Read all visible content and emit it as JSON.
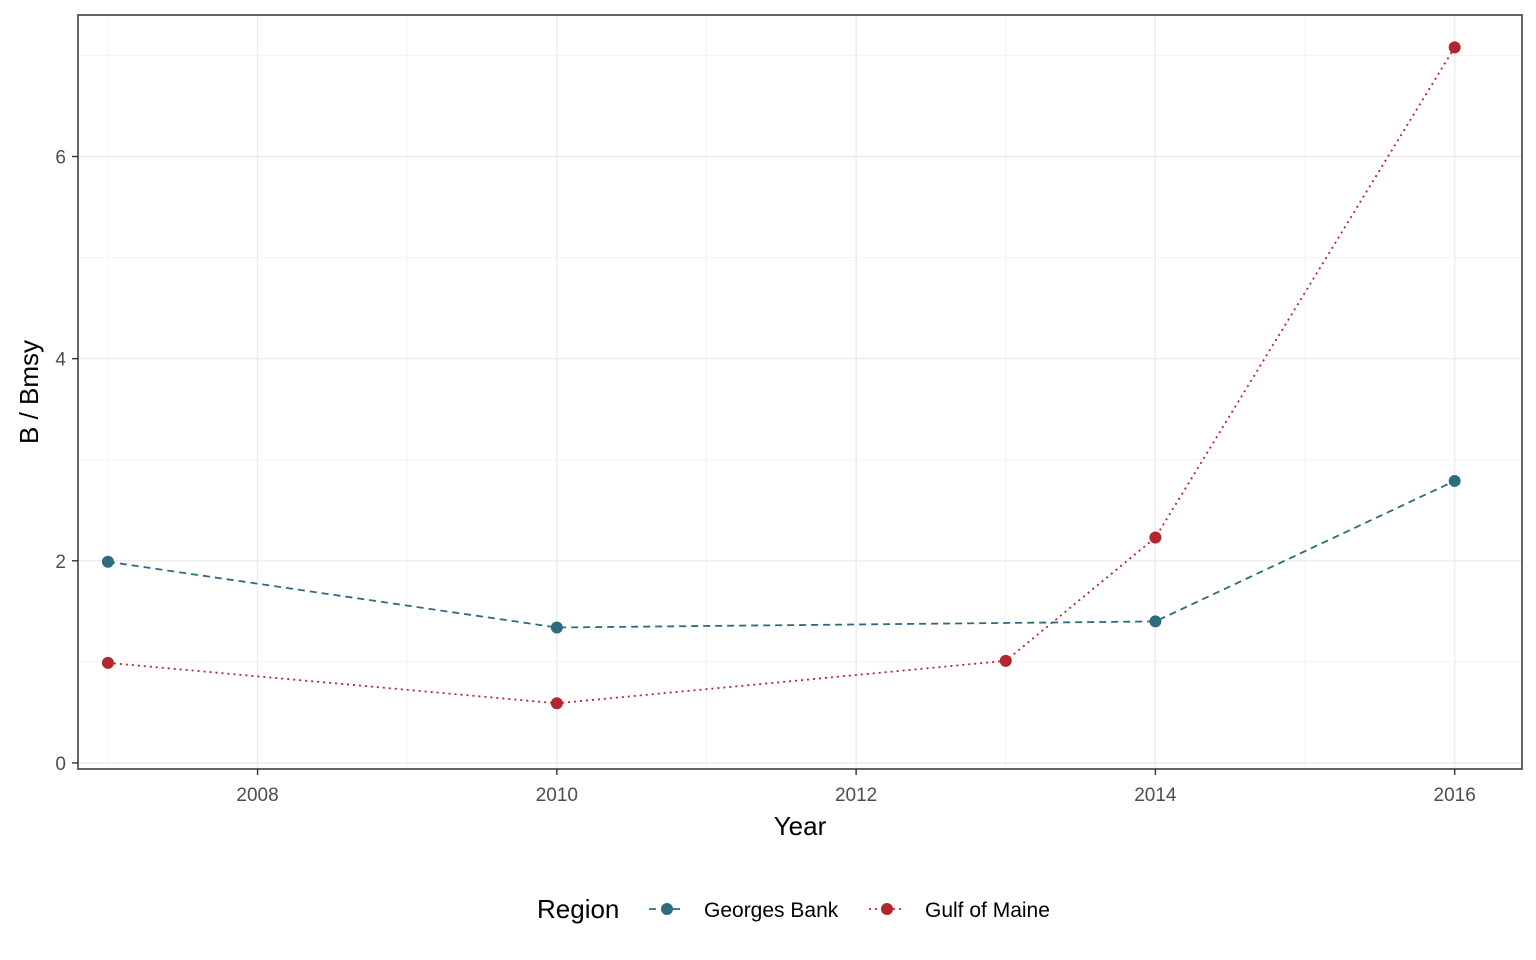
{
  "chart_data": {
    "type": "line",
    "title": "",
    "xlabel": "Year",
    "ylabel": "B / Bmsy",
    "xlim": [
      2006.8,
      2016.45
    ],
    "ylim": [
      -0.06,
      7.4
    ],
    "x_ticks": [
      2008,
      2010,
      2012,
      2014,
      2016
    ],
    "x_tick_labels": [
      "2008",
      "2010",
      "2012",
      "2014",
      "2016"
    ],
    "x_minor_ticks": [
      2007,
      2009,
      2011,
      2013,
      2015
    ],
    "y_ticks": [
      0,
      2,
      4,
      6
    ],
    "y_tick_labels": [
      "0",
      "2",
      "4",
      "6"
    ],
    "y_minor_ticks": [
      1,
      3,
      5,
      7
    ],
    "grid": true,
    "legend": {
      "title": "Region",
      "placement": "bottom"
    },
    "series": [
      {
        "name": "Georges Bank",
        "color": "#2e6b7e",
        "line_style": "dashed",
        "x": [
          2007,
          2010,
          2014,
          2016
        ],
        "y": [
          1.99,
          1.34,
          1.4,
          2.79
        ]
      },
      {
        "name": "Gulf of Maine",
        "color": "#b3262e",
        "line_style": "dotted",
        "x": [
          2007,
          2010,
          2013,
          2014,
          2016
        ],
        "y": [
          0.99,
          0.59,
          1.01,
          2.23,
          7.08
        ]
      }
    ]
  }
}
